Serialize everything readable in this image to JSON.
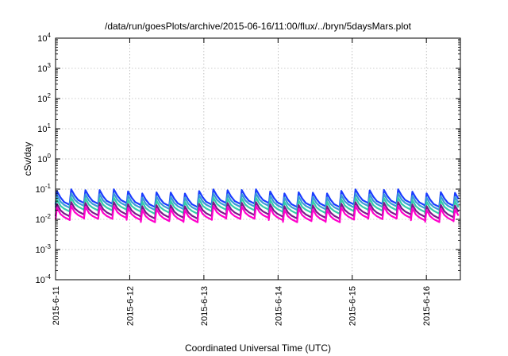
{
  "chart_data": {
    "type": "line",
    "title": "/data/run/goesPlots/archive/2015-06-16/11:00/flux/../bryn/5daysMars.plot",
    "xlabel": "Coordinated Universal Time (UTC)",
    "ylabel": "cSv/day",
    "xlim": [
      "2015-06-11 00:00",
      "2015-06-16 11:00"
    ],
    "ylim": [
      0.0001,
      10000
    ],
    "yscale": "log",
    "grid": true,
    "x_ticks": [
      "2015-6-11",
      "2015-6-12",
      "2015-6-13",
      "2015-6-14",
      "2015-6-15",
      "2015-6-16"
    ],
    "y_ticks": [
      {
        "value": 0.0001,
        "base": "10",
        "exp": "-4"
      },
      {
        "value": 0.001,
        "base": "10",
        "exp": "-3"
      },
      {
        "value": 0.01,
        "base": "10",
        "exp": "-2"
      },
      {
        "value": 0.1,
        "base": "10",
        "exp": "-1"
      },
      {
        "value": 1,
        "base": "10",
        "exp": "0"
      },
      {
        "value": 10,
        "base": "10",
        "exp": "1"
      },
      {
        "value": 100,
        "base": "10",
        "exp": "2"
      },
      {
        "value": 1000,
        "base": "10",
        "exp": "3"
      },
      {
        "value": 10000,
        "base": "10",
        "exp": "4"
      }
    ],
    "sawtooth_period_hours": 4.6,
    "series": [
      {
        "color": "#1a3cff",
        "peak": 0.085,
        "trough": 0.03
      },
      {
        "color": "#3a9bd6",
        "peak": 0.062,
        "trough": 0.024
      },
      {
        "color": "#33ccaa",
        "peak": 0.045,
        "trough": 0.018
      },
      {
        "color": "#7a1a8a",
        "peak": 0.032,
        "trough": 0.0125
      },
      {
        "color": "#ff00cc",
        "peak": 0.024,
        "trough": 0.0095
      }
    ]
  }
}
